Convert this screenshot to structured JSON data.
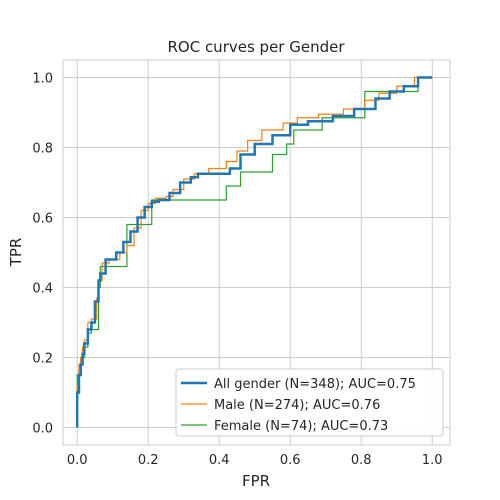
{
  "chart_data": {
    "type": "line",
    "title": "ROC curves per Gender",
    "xlabel": "FPR",
    "ylabel": "TPR",
    "xlim": [
      -0.04,
      1.05
    ],
    "ylim": [
      -0.05,
      1.05
    ],
    "xticks": [
      0.0,
      0.2,
      0.4,
      0.6,
      0.8,
      1.0
    ],
    "yticks": [
      0.0,
      0.2,
      0.4,
      0.6,
      0.8,
      1.0
    ],
    "xtick_labels": [
      "0.0",
      "0.2",
      "0.4",
      "0.6",
      "0.8",
      "1.0"
    ],
    "ytick_labels": [
      "0.0",
      "0.2",
      "0.4",
      "0.6",
      "0.8",
      "1.0"
    ],
    "grid": true,
    "legend_position": "lower-right",
    "series": [
      {
        "name": "All gender (N=348); AUC=0.75",
        "color": "#1f77b4",
        "step": true,
        "x": [
          0.0,
          0.0,
          0.005,
          0.005,
          0.01,
          0.01,
          0.015,
          0.015,
          0.02,
          0.02,
          0.03,
          0.03,
          0.04,
          0.04,
          0.05,
          0.05,
          0.06,
          0.06,
          0.065,
          0.065,
          0.08,
          0.08,
          0.11,
          0.11,
          0.13,
          0.13,
          0.15,
          0.15,
          0.17,
          0.17,
          0.19,
          0.19,
          0.21,
          0.21,
          0.23,
          0.23,
          0.26,
          0.26,
          0.29,
          0.29,
          0.32,
          0.32,
          0.34,
          0.34,
          0.43,
          0.43,
          0.46,
          0.46,
          0.5,
          0.5,
          0.55,
          0.55,
          0.6,
          0.6,
          0.65,
          0.65,
          0.72,
          0.72,
          0.78,
          0.78,
          0.84,
          0.84,
          0.88,
          0.88,
          0.92,
          0.92,
          0.96,
          0.96,
          1.0
        ],
        "y": [
          0.0,
          0.1,
          0.1,
          0.15,
          0.15,
          0.18,
          0.18,
          0.21,
          0.21,
          0.24,
          0.24,
          0.28,
          0.28,
          0.3,
          0.3,
          0.36,
          0.36,
          0.42,
          0.42,
          0.44,
          0.44,
          0.48,
          0.48,
          0.5,
          0.5,
          0.53,
          0.53,
          0.56,
          0.56,
          0.6,
          0.6,
          0.63,
          0.63,
          0.645,
          0.645,
          0.65,
          0.65,
          0.67,
          0.67,
          0.7,
          0.7,
          0.715,
          0.715,
          0.725,
          0.725,
          0.74,
          0.74,
          0.78,
          0.78,
          0.81,
          0.81,
          0.835,
          0.835,
          0.865,
          0.865,
          0.875,
          0.875,
          0.89,
          0.89,
          0.91,
          0.91,
          0.94,
          0.94,
          0.96,
          0.96,
          0.975,
          0.975,
          1.0,
          1.0
        ]
      },
      {
        "name": "Male (N=274); AUC=0.76",
        "color": "#ff7f0e",
        "step": true,
        "x": [
          0.0,
          0.0,
          0.005,
          0.005,
          0.01,
          0.01,
          0.015,
          0.015,
          0.02,
          0.02,
          0.03,
          0.03,
          0.04,
          0.04,
          0.055,
          0.055,
          0.06,
          0.06,
          0.07,
          0.07,
          0.09,
          0.09,
          0.12,
          0.12,
          0.14,
          0.14,
          0.16,
          0.16,
          0.18,
          0.18,
          0.2,
          0.2,
          0.22,
          0.22,
          0.25,
          0.25,
          0.27,
          0.27,
          0.3,
          0.3,
          0.33,
          0.33,
          0.37,
          0.37,
          0.42,
          0.42,
          0.45,
          0.45,
          0.48,
          0.48,
          0.52,
          0.52,
          0.58,
          0.58,
          0.62,
          0.62,
          0.68,
          0.68,
          0.75,
          0.75,
          0.81,
          0.81,
          0.85,
          0.85,
          0.9,
          0.9,
          0.95,
          0.95,
          1.0
        ],
        "y": [
          0.0,
          0.12,
          0.12,
          0.18,
          0.18,
          0.2,
          0.2,
          0.23,
          0.23,
          0.25,
          0.25,
          0.3,
          0.3,
          0.31,
          0.31,
          0.37,
          0.37,
          0.42,
          0.42,
          0.47,
          0.47,
          0.48,
          0.48,
          0.5,
          0.5,
          0.52,
          0.52,
          0.57,
          0.57,
          0.62,
          0.62,
          0.64,
          0.64,
          0.655,
          0.655,
          0.66,
          0.66,
          0.68,
          0.68,
          0.71,
          0.71,
          0.725,
          0.725,
          0.74,
          0.74,
          0.76,
          0.76,
          0.79,
          0.79,
          0.82,
          0.82,
          0.85,
          0.85,
          0.87,
          0.87,
          0.885,
          0.885,
          0.895,
          0.895,
          0.91,
          0.91,
          0.935,
          0.935,
          0.955,
          0.955,
          0.975,
          0.975,
          1.0,
          1.0
        ]
      },
      {
        "name": "Female (N=74); AUC=0.73",
        "color": "#2ca02c",
        "step": true,
        "x": [
          0.0,
          0.0,
          0.01,
          0.01,
          0.02,
          0.02,
          0.03,
          0.03,
          0.04,
          0.04,
          0.06,
          0.06,
          0.065,
          0.065,
          0.14,
          0.14,
          0.21,
          0.21,
          0.42,
          0.42,
          0.46,
          0.46,
          0.55,
          0.55,
          0.59,
          0.59,
          0.61,
          0.61,
          0.69,
          0.69,
          0.81,
          0.81,
          0.87,
          0.87,
          0.96,
          0.96,
          1.0
        ],
        "y": [
          0.0,
          0.15,
          0.15,
          0.2,
          0.2,
          0.23,
          0.23,
          0.27,
          0.27,
          0.28,
          0.28,
          0.4,
          0.4,
          0.46,
          0.46,
          0.58,
          0.58,
          0.65,
          0.65,
          0.69,
          0.69,
          0.73,
          0.73,
          0.78,
          0.78,
          0.81,
          0.81,
          0.85,
          0.85,
          0.885,
          0.885,
          0.96,
          0.96,
          0.96,
          0.96,
          1.0,
          1.0
        ]
      }
    ]
  }
}
